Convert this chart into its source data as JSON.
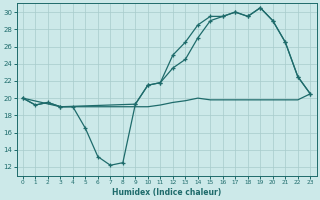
{
  "xlabel": "Humidex (Indice chaleur)",
  "bg_color": "#cce9e9",
  "line_color": "#1e6b6b",
  "grid_color": "#a8cccc",
  "xlim": [
    -0.5,
    23.5
  ],
  "ylim": [
    11.0,
    31.0
  ],
  "yticks": [
    12,
    14,
    16,
    18,
    20,
    22,
    24,
    26,
    28,
    30
  ],
  "xticks": [
    0,
    1,
    2,
    3,
    4,
    5,
    6,
    7,
    8,
    9,
    10,
    11,
    12,
    13,
    14,
    15,
    16,
    17,
    18,
    19,
    20,
    21,
    22,
    23
  ],
  "curve_dip_x": [
    0,
    1,
    2,
    3,
    4,
    5,
    6,
    7,
    8,
    9,
    10,
    11,
    12,
    13,
    14,
    15,
    16,
    17,
    18,
    19,
    20,
    21,
    22,
    23
  ],
  "curve_dip_y": [
    20.0,
    19.2,
    19.5,
    19.0,
    19.0,
    16.5,
    13.2,
    12.2,
    12.5,
    19.3,
    21.5,
    21.8,
    25.0,
    26.5,
    28.5,
    29.5,
    29.5,
    30.0,
    29.5,
    30.5,
    29.0,
    26.5,
    22.5,
    20.5
  ],
  "curve_top_x": [
    0,
    3,
    9,
    10,
    11,
    12,
    13,
    14,
    15,
    16,
    17,
    18,
    19,
    20,
    21,
    22,
    23
  ],
  "curve_top_y": [
    20.0,
    19.0,
    19.3,
    21.5,
    21.8,
    23.5,
    24.5,
    27.0,
    29.0,
    29.5,
    30.0,
    29.5,
    30.5,
    29.0,
    26.5,
    22.5,
    20.5
  ],
  "curve_flat_x": [
    0,
    1,
    2,
    3,
    4,
    5,
    6,
    7,
    8,
    9,
    10,
    11,
    12,
    13,
    14,
    15,
    16,
    17,
    18,
    19,
    20,
    21,
    22,
    23
  ],
  "curve_flat_y": [
    20.0,
    19.2,
    19.5,
    19.0,
    19.0,
    19.0,
    19.0,
    19.0,
    19.0,
    19.0,
    19.0,
    19.2,
    19.5,
    19.7,
    20.0,
    19.8,
    19.8,
    19.8,
    19.8,
    19.8,
    19.8,
    19.8,
    19.8,
    20.5
  ]
}
